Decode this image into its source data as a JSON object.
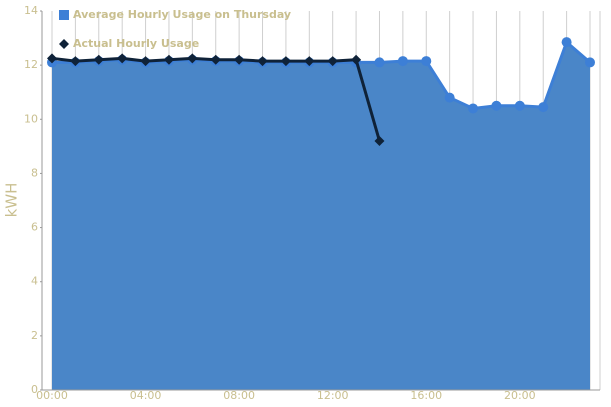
{
  "chart_data": {
    "type": "area",
    "y_label": "kWH",
    "categories": [
      "00:00",
      null,
      null,
      null,
      "04:00",
      null,
      null,
      null,
      "08:00",
      null,
      null,
      null,
      "12:00",
      null,
      null,
      null,
      "16:00",
      null,
      null,
      null,
      "20:00",
      null,
      null,
      null
    ],
    "series": [
      {
        "name": "Average Hourly Usage on Thursday",
        "color": "#4a86c8",
        "values": [
          12.1,
          12.1,
          12.15,
          12.2,
          12.1,
          12.15,
          12.2,
          12.15,
          12.15,
          12.1,
          12.1,
          12.1,
          12.1,
          12.1,
          12.1,
          12.15,
          12.15,
          10.8,
          10.4,
          10.5,
          10.5,
          10.45,
          12.85,
          12.1
        ]
      },
      {
        "name": "Actual Hourly Usage",
        "color": "#0f2238",
        "type": "line",
        "values": [
          12.25,
          12.15,
          12.2,
          12.25,
          12.15,
          12.2,
          12.25,
          12.2,
          12.2,
          12.15,
          12.15,
          12.15,
          12.15,
          12.2,
          9.2,
          null,
          null,
          null,
          null,
          null,
          null,
          null,
          null,
          null
        ]
      }
    ],
    "ylim": [
      0,
      14
    ],
    "yticks": [
      0,
      2,
      4,
      6,
      8,
      10,
      12,
      14
    ],
    "grid": true,
    "legend": "top-left"
  }
}
